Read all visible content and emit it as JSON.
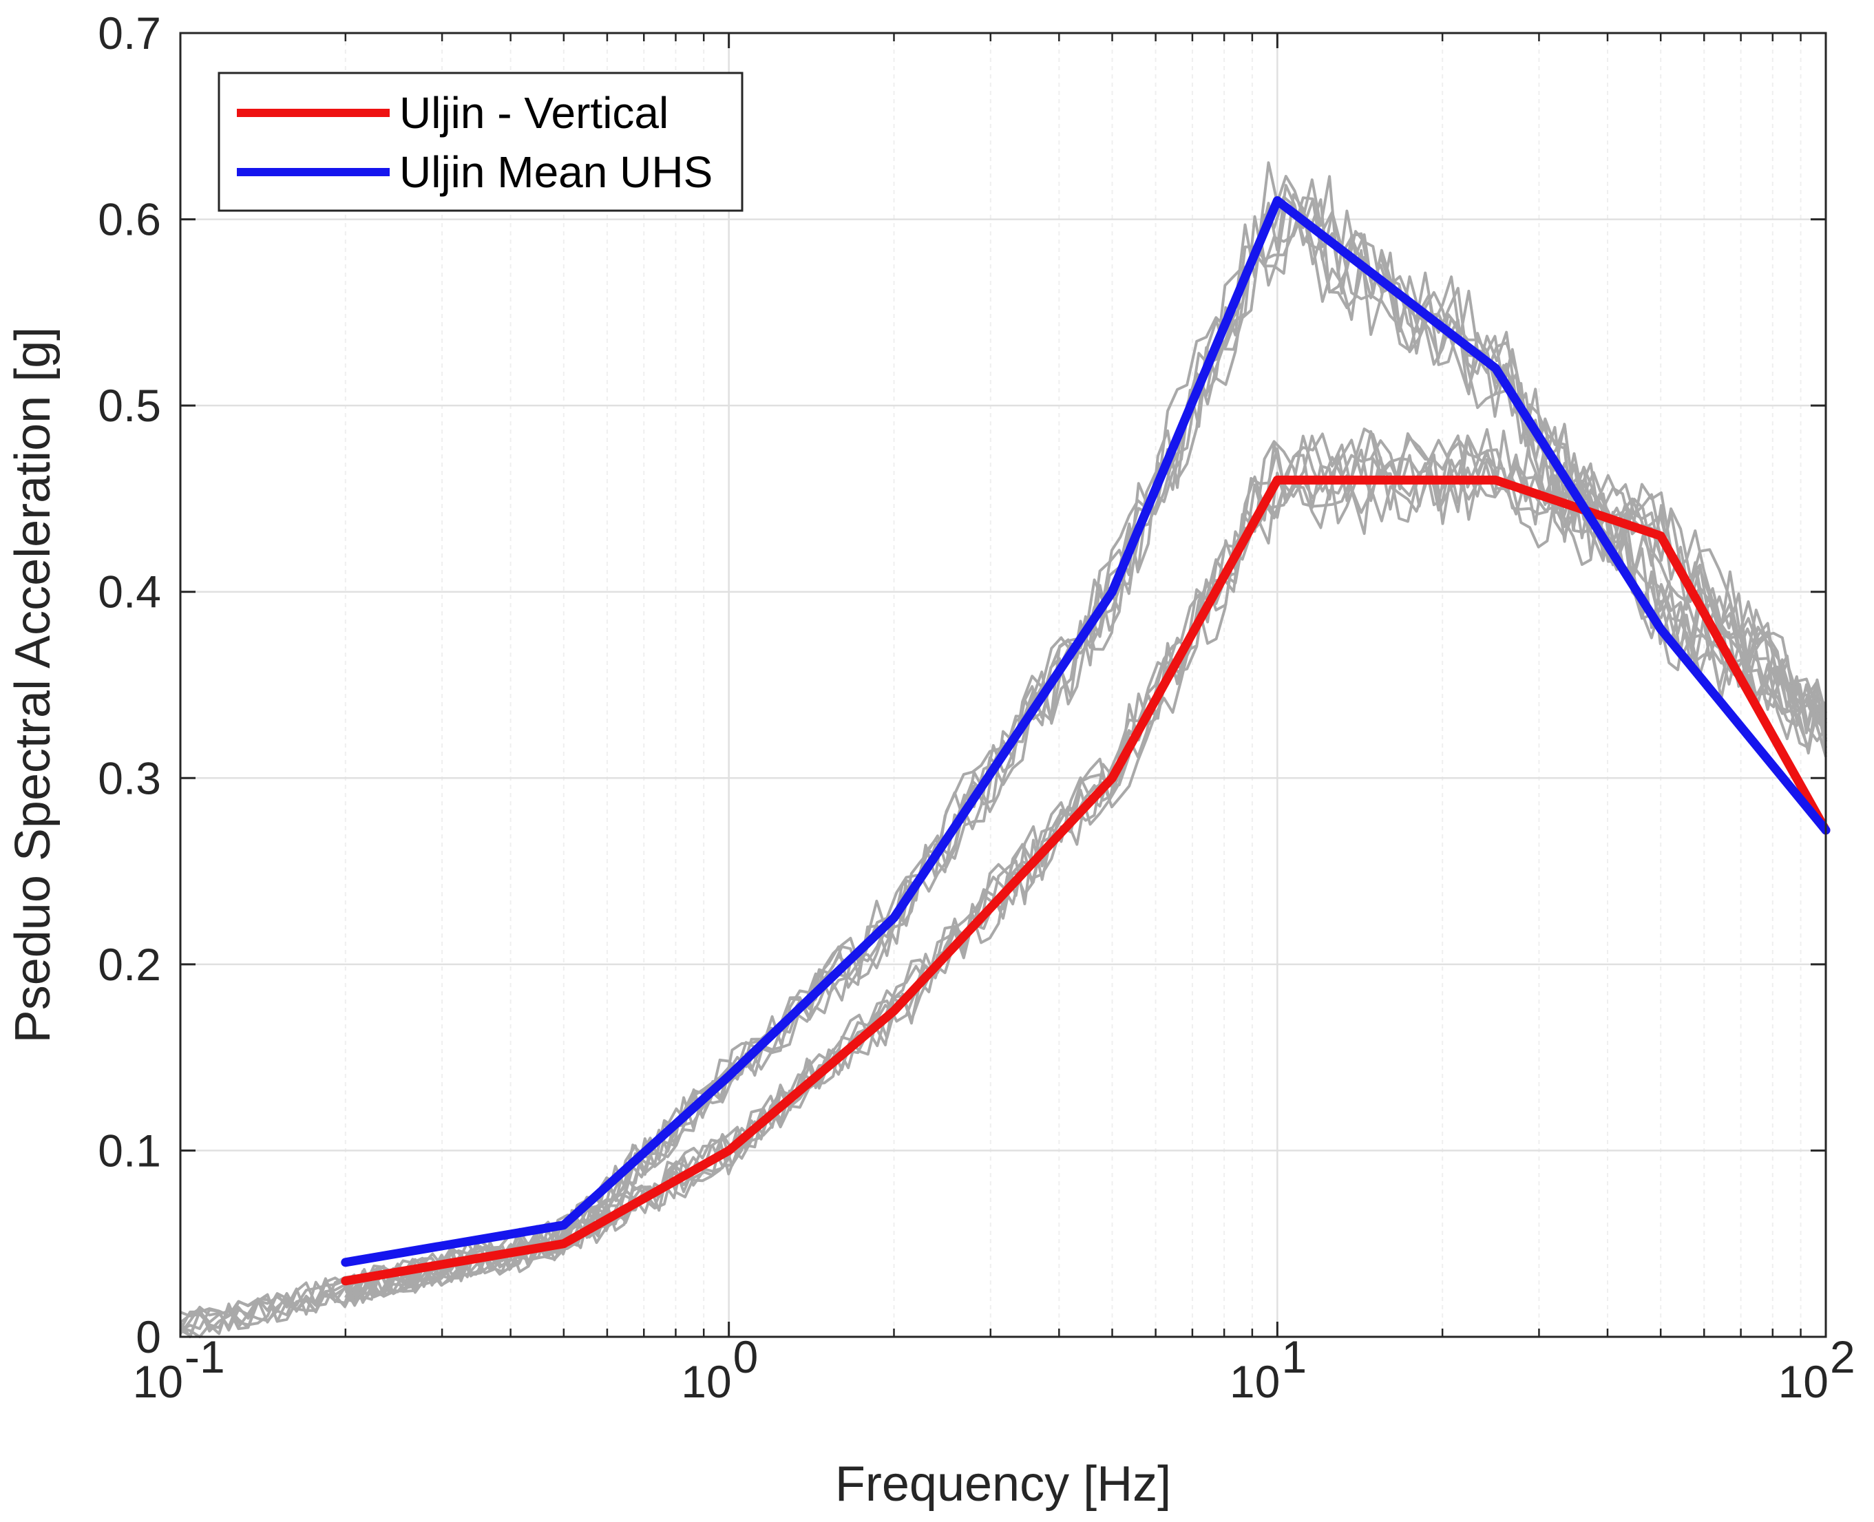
{
  "chart_data": {
    "type": "line",
    "xscale": "log",
    "xlabel": "Frequency [Hz]",
    "ylabel": "Pseduo Spectral Acceleration [g]",
    "xlim": [
      0.1,
      100
    ],
    "ylim": [
      0,
      0.7
    ],
    "yticks": [
      "0",
      "0.1",
      "0.2",
      "0.3",
      "0.4",
      "0.5",
      "0.6",
      "0.7"
    ],
    "xticks": [
      {
        "base": "10",
        "exp": "-1"
      },
      {
        "base": "10",
        "exp": "0"
      },
      {
        "base": "10",
        "exp": "1"
      },
      {
        "base": "10",
        "exp": "2"
      }
    ],
    "grid": true,
    "legend_position": "top-left",
    "colors": {
      "vertical": "#ee1111",
      "uhs": "#1515ee",
      "records": "#a9a9a9",
      "grid": "#e0e0e0",
      "minor_grid": "#efefef"
    },
    "series": [
      {
        "name": "Uljin - Vertical",
        "color": "#ee1111",
        "x": [
          0.2,
          0.5,
          1,
          2,
          5,
          10,
          25,
          50,
          100
        ],
        "y": [
          0.03,
          0.05,
          0.1,
          0.175,
          0.3,
          0.46,
          0.46,
          0.43,
          0.272
        ]
      },
      {
        "name": "Uljin Mean UHS",
        "color": "#1515ee",
        "x": [
          0.2,
          0.5,
          1,
          2,
          5,
          10,
          25,
          50,
          100
        ],
        "y": [
          0.04,
          0.06,
          0.14,
          0.225,
          0.4,
          0.61,
          0.52,
          0.38,
          0.272
        ]
      }
    ],
    "record_groups": [
      {
        "name": "vertical-records",
        "count": 7,
        "x": [
          0.1,
          0.2,
          0.5,
          1,
          2,
          5,
          10,
          25,
          50,
          100
        ],
        "y": [
          0.005,
          0.025,
          0.05,
          0.1,
          0.175,
          0.3,
          0.46,
          0.46,
          0.43,
          0.325
        ]
      },
      {
        "name": "horizontal-records",
        "count": 7,
        "x": [
          0.1,
          0.2,
          0.5,
          1,
          2,
          5,
          10,
          25,
          50,
          100
        ],
        "y": [
          0.005,
          0.025,
          0.055,
          0.14,
          0.225,
          0.4,
          0.61,
          0.52,
          0.39,
          0.33
        ]
      }
    ]
  }
}
